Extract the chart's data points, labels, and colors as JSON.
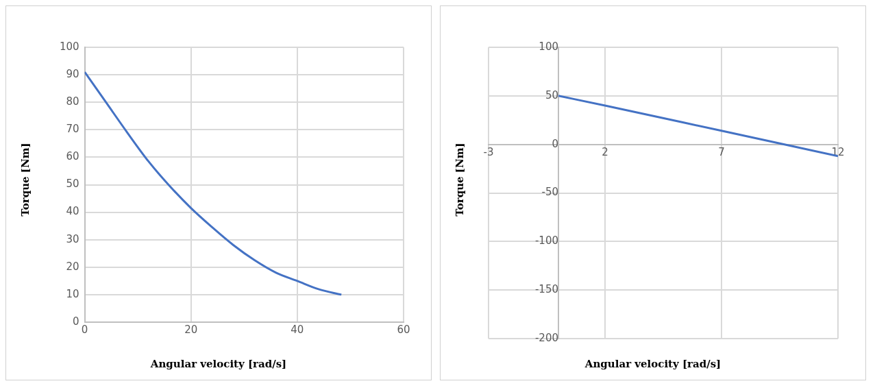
{
  "chart_data": [
    {
      "type": "line",
      "xlabel": "Angular velocity [rad/s]",
      "ylabel": "Torque [Nm]",
      "color": "#4472c4",
      "x": [
        0,
        4,
        8,
        12,
        16,
        20,
        24,
        28,
        32,
        36,
        40,
        44,
        48.3
      ],
      "values": [
        91,
        80,
        69,
        58.5,
        49.5,
        41.5,
        34.5,
        28,
        22.5,
        18,
        15,
        12,
        10
      ],
      "xlim": [
        0,
        60
      ],
      "xticks": [
        0,
        20,
        40,
        60
      ],
      "ylim": [
        0,
        100
      ],
      "yticks": [
        0,
        10,
        20,
        30,
        40,
        50,
        60,
        70,
        80,
        90,
        100
      ],
      "grid": true
    },
    {
      "type": "line",
      "xlabel": "Angular velocity [rad/s]",
      "ylabel": "Torque [Nm]",
      "color": "#4472c4",
      "x": [
        0,
        2,
        7,
        12
      ],
      "values": [
        50,
        40,
        14,
        -12
      ],
      "xlim": [
        -3,
        12
      ],
      "xticks": [
        -3,
        2,
        7,
        12
      ],
      "ylim": [
        -200,
        100
      ],
      "yticks": [
        -200,
        -150,
        -100,
        -50,
        0,
        50,
        100
      ],
      "grid": true
    }
  ]
}
